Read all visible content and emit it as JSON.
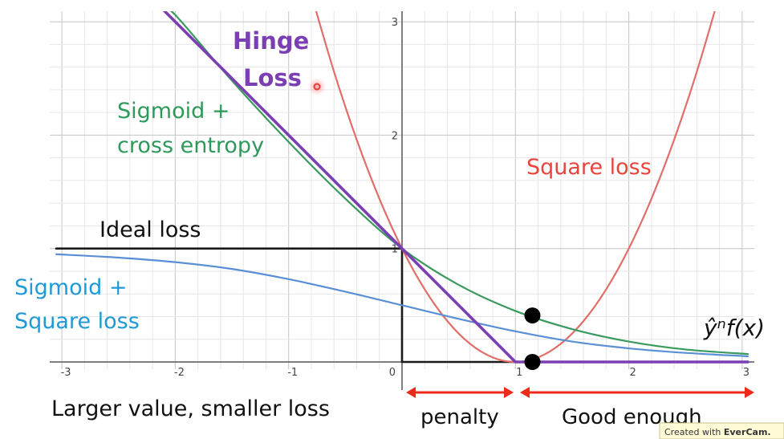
{
  "chart_data": {
    "type": "line",
    "title": "",
    "xlabel": "",
    "ylabel": "",
    "xlim": [
      -3.05,
      3.05
    ],
    "ylim": [
      -0.35,
      3.1
    ],
    "grid": true,
    "x_ticks": [
      {
        "value": -3,
        "label": "-3"
      },
      {
        "value": -2,
        "label": "-2"
      },
      {
        "value": -1,
        "label": "-1"
      },
      {
        "value": 0,
        "label": "0"
      },
      {
        "value": 1,
        "label": "1"
      },
      {
        "value": 2,
        "label": "2"
      },
      {
        "value": 3,
        "label": "3"
      }
    ],
    "y_ticks": [
      {
        "value": 1,
        "label": "1"
      },
      {
        "value": 2,
        "label": "2"
      },
      {
        "value": 3,
        "label": "3"
      }
    ],
    "series": [
      {
        "name": "Ideal loss",
        "color": "#1a1a1a",
        "x": [
          -3.05,
          0,
          0,
          3.05
        ],
        "y": [
          1,
          1,
          0,
          0
        ]
      },
      {
        "name": "Square loss",
        "color": "#e06f6a",
        "x": [
          -0.8,
          -0.6,
          -0.4,
          -0.2,
          0,
          0.2,
          0.4,
          0.6,
          0.8,
          1,
          1.2,
          1.4,
          1.6,
          1.8,
          2,
          2.2,
          2.4,
          2.6,
          2.8
        ],
        "y": [
          3.24,
          2.56,
          1.96,
          1.44,
          1,
          0.64,
          0.36,
          0.16,
          0.04,
          0,
          0.04,
          0.16,
          0.36,
          0.64,
          1,
          1.44,
          1.96,
          2.56,
          3.24
        ]
      },
      {
        "name": "Sigmoid + Square loss",
        "color": "#5a8fd6",
        "x": [
          -3.05,
          -2.5,
          -2,
          -1.5,
          -1,
          -0.5,
          0,
          0.5,
          1,
          1.5,
          2,
          2.5,
          3.05
        ],
        "y": [
          0.95,
          0.92,
          0.88,
          0.82,
          0.73,
          0.62,
          0.5,
          0.38,
          0.27,
          0.18,
          0.12,
          0.08,
          0.05
        ]
      },
      {
        "name": "Sigmoid + cross entropy",
        "color": "#3a9a5e",
        "x": [
          -2.1,
          -2,
          -1.5,
          -1,
          -0.5,
          0,
          0.5,
          1,
          1.5,
          2,
          2.5,
          3.05
        ],
        "y": [
          3.1,
          3.06,
          2.48,
          1.94,
          1.44,
          1,
          0.68,
          0.45,
          0.29,
          0.18,
          0.11,
          0.07
        ]
      },
      {
        "name": "Hinge Loss",
        "color": "#7b3fb3",
        "x": [
          -2.1,
          1,
          3.05
        ],
        "y": [
          3.1,
          0,
          0
        ]
      }
    ],
    "points": [
      {
        "x": 1.15,
        "y": 0.41
      },
      {
        "x": 1.15,
        "y": 0.0
      }
    ],
    "annotations": {
      "hinge_line1": "Hinge",
      "hinge_line2": "Loss",
      "sig_ce_line1": "Sigmoid +",
      "sig_ce_line2": "cross entropy",
      "square_loss": "Square loss",
      "ideal_loss": "Ideal loss",
      "sig_sq_line1": "Sigmoid +",
      "sig_sq_line2": "Square loss",
      "xlabel_formula": "ŷⁿf(x)",
      "larger_value": "Larger value, smaller loss",
      "penalty": "penalty",
      "good_enough": "Good enough"
    }
  },
  "watermark": {
    "prefix": "Created with ",
    "brand": "EverCam."
  }
}
